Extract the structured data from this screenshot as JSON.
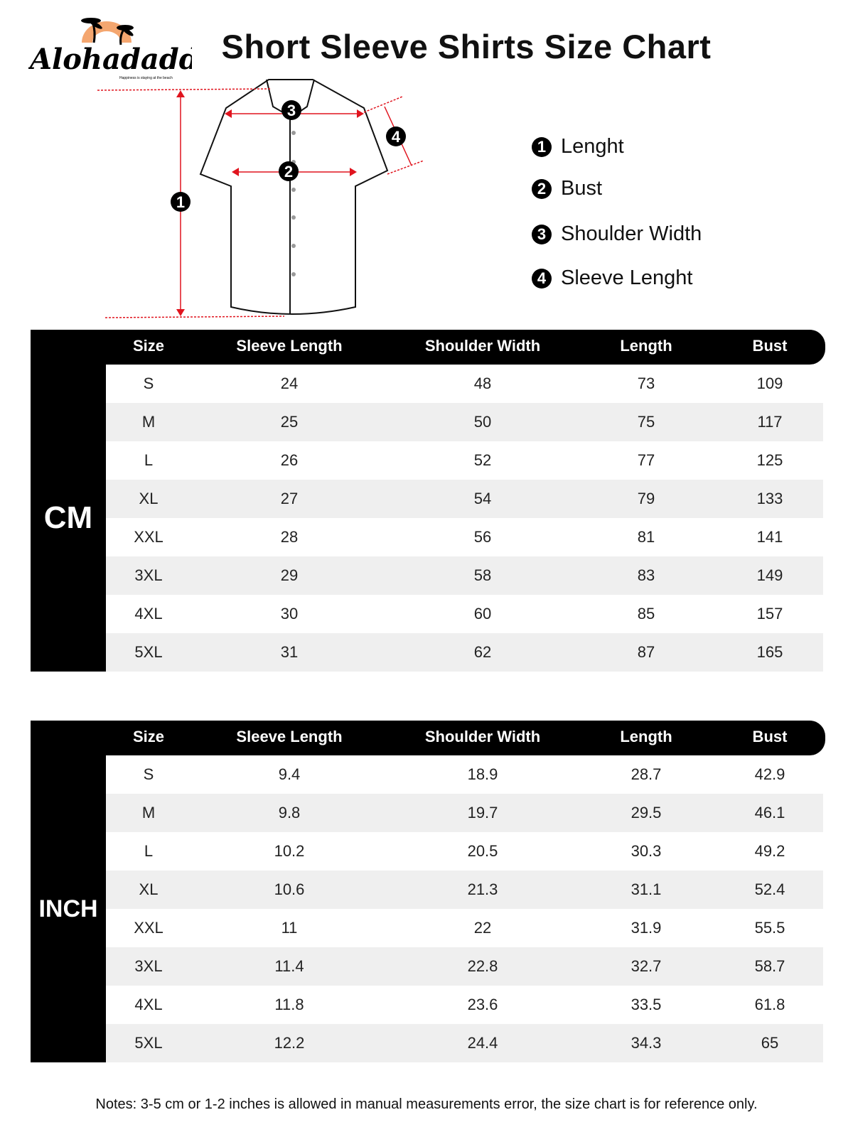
{
  "brand": {
    "name": "Alohadaddy",
    "tagline": "Happiness is staying at the beach",
    "sun_color": "#f4a66f"
  },
  "title": "Short Sleeve Shirts Size Chart",
  "legend": [
    {
      "num": "1",
      "label": "Lenght"
    },
    {
      "num": "2",
      "label": "Bust"
    },
    {
      "num": "3",
      "label": "Shoulder Width"
    },
    {
      "num": "4",
      "label": "Sleeve Lenght"
    }
  ],
  "diagram_markers": [
    "1",
    "2",
    "3",
    "4"
  ],
  "colors": {
    "header": "#000000",
    "stripe": "#efefef",
    "measure_line": "#e0141e"
  },
  "columns": [
    "Size",
    "Sleeve Length",
    "Shoulder Width",
    "Length",
    "Bust"
  ],
  "tables": [
    {
      "unit": "CM",
      "rows": [
        [
          "S",
          "24",
          "48",
          "73",
          "109"
        ],
        [
          "M",
          "25",
          "50",
          "75",
          "117"
        ],
        [
          "L",
          "26",
          "52",
          "77",
          "125"
        ],
        [
          "XL",
          "27",
          "54",
          "79",
          "133"
        ],
        [
          "XXL",
          "28",
          "56",
          "81",
          "141"
        ],
        [
          "3XL",
          "29",
          "58",
          "83",
          "149"
        ],
        [
          "4XL",
          "30",
          "60",
          "85",
          "157"
        ],
        [
          "5XL",
          "31",
          "62",
          "87",
          "165"
        ]
      ]
    },
    {
      "unit": "INCH",
      "rows": [
        [
          "S",
          "9.4",
          "18.9",
          "28.7",
          "42.9"
        ],
        [
          "M",
          "9.8",
          "19.7",
          "29.5",
          "46.1"
        ],
        [
          "L",
          "10.2",
          "20.5",
          "30.3",
          "49.2"
        ],
        [
          "XL",
          "10.6",
          "21.3",
          "31.1",
          "52.4"
        ],
        [
          "XXL",
          "11",
          "22",
          "31.9",
          "55.5"
        ],
        [
          "3XL",
          "11.4",
          "22.8",
          "32.7",
          "58.7"
        ],
        [
          "4XL",
          "11.8",
          "23.6",
          "33.5",
          "61.8"
        ],
        [
          "5XL",
          "12.2",
          "24.4",
          "34.3",
          "65"
        ]
      ]
    }
  ],
  "notes": "Notes: 3-5 cm or 1-2 inches is allowed in manual measurements error, the size chart is for reference only."
}
